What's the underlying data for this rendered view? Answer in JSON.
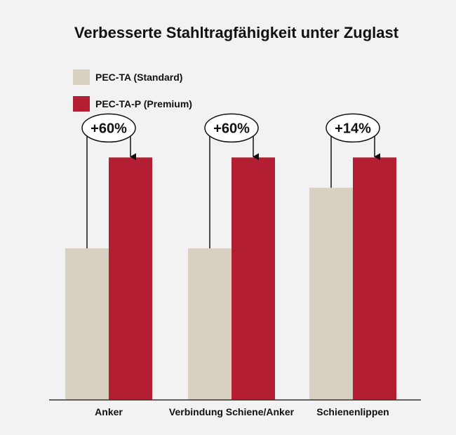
{
  "chart_data": {
    "type": "bar",
    "title": "Verbesserte Stahltragfähigkeit unter Zuglast",
    "xlabel": "",
    "ylabel": "",
    "categories": [
      "Anker",
      "Verbindung Schiene/Anker",
      "Schienenlippen"
    ],
    "series": [
      {
        "name": "PEC-TA (Standard)",
        "color": "#d8d0c0",
        "values": [
          100,
          100,
          140
        ]
      },
      {
        "name": "PEC-TA-P (Premium)",
        "color": "#b41e32",
        "values": [
          160,
          160,
          160
        ]
      }
    ],
    "callouts": [
      "+60%",
      "+60%",
      "+14%"
    ],
    "ylim": [
      0,
      200
    ],
    "grid": false,
    "legend_position": "top-left"
  }
}
